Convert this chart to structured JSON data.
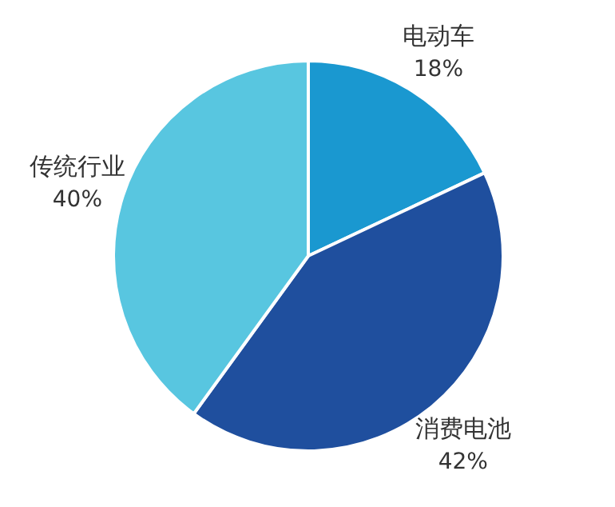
{
  "chart_data": {
    "type": "pie",
    "categories": [
      "电动车",
      "消费电池",
      "传统行业"
    ],
    "values": [
      18,
      42,
      40
    ],
    "colors": [
      "#1a98d0",
      "#1f4f9e",
      "#58c6e0"
    ],
    "value_labels": [
      "18%",
      "42%",
      "40%"
    ]
  }
}
